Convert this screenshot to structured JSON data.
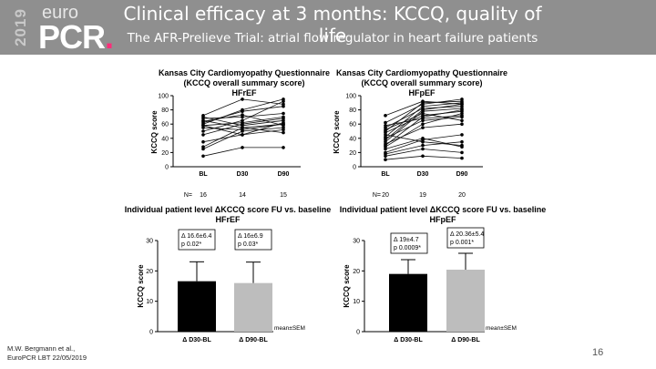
{
  "header": {
    "logo_year": "2019",
    "logo_euro": "euro",
    "logo_pcr": "PCR",
    "title": "Clinical efficacy at 3 months: KCCQ, quality of life",
    "subtitle": "The AFR-Prelieve Trial: atrial flow regulator in heart failure patients"
  },
  "footer": {
    "citation_line1": "M.W. Bergmann et al.,",
    "citation_line2": "EuroPCR LBT 22/05/2019",
    "page_number": "16"
  },
  "colors": {
    "header_bg": "#8f8f8f",
    "bar_dark": "#000000",
    "bar_light": "#bdbdbd"
  },
  "chart_data": [
    {
      "type": "line",
      "id": "hfref-line",
      "title_line1": "Kansas City Cardiomyopathy Questionnaire",
      "title_line2": "(KCCQ  overall summary score)",
      "subtitle": "HFrEF",
      "ylabel": "KCCQ score",
      "ylim": [
        0,
        100
      ],
      "yticks": [
        "0",
        "20",
        "40",
        "60",
        "80",
        "100"
      ],
      "categories": [
        "BL",
        "D30",
        "D90"
      ],
      "n_label": "N=",
      "n_values": [
        "16",
        "14",
        "15"
      ],
      "series": [
        [
          15,
          27,
          27
        ],
        [
          25,
          50,
          55
        ],
        [
          28,
          55,
          60
        ],
        [
          35,
          45,
          52
        ],
        [
          45,
          60,
          68
        ],
        [
          50,
          65,
          92
        ],
        [
          55,
          52,
          60
        ],
        [
          58,
          62,
          70
        ],
        [
          60,
          80,
          95
        ],
        [
          62,
          78,
          85
        ],
        [
          65,
          55,
          48
        ],
        [
          68,
          70,
          75
        ],
        [
          70,
          58,
          65
        ],
        [
          72,
          95,
          88
        ],
        [
          58,
          45,
          62
        ],
        [
          64,
          73,
          58
        ]
      ]
    },
    {
      "type": "line",
      "id": "hfpef-line",
      "title_line1": "Kansas City Cardiomyopathy Questionnaire",
      "title_line2": "(KCCQ  overall summary score)",
      "subtitle": "HFpEF",
      "ylabel": "KCCQ score",
      "ylim": [
        0,
        100
      ],
      "yticks": [
        "0",
        "20",
        "40",
        "60",
        "80",
        "100"
      ],
      "categories": [
        "BL",
        "D30",
        "D90"
      ],
      "n_label": "N=",
      "n_values": [
        "20",
        "19",
        "20"
      ],
      "series": [
        [
          10,
          15,
          12
        ],
        [
          15,
          25,
          20
        ],
        [
          18,
          30,
          35
        ],
        [
          20,
          38,
          45
        ],
        [
          25,
          40,
          28
        ],
        [
          28,
          60,
          75
        ],
        [
          30,
          70,
          80
        ],
        [
          32,
          55,
          60
        ],
        [
          35,
          78,
          82
        ],
        [
          38,
          80,
          88
        ],
        [
          40,
          65,
          70
        ],
        [
          42,
          85,
          90
        ],
        [
          45,
          35,
          30
        ],
        [
          48,
          72,
          78
        ],
        [
          50,
          90,
          92
        ],
        [
          52,
          75,
          65
        ],
        [
          55,
          82,
          85
        ],
        [
          58,
          68,
          72
        ],
        [
          62,
          88,
          95
        ],
        [
          72,
          92,
          88
        ]
      ]
    },
    {
      "type": "bar",
      "id": "hfref-bar",
      "title_line1": "Individual patient level ΔKCCQ score FU vs. baseline",
      "subtitle": "HFrEF",
      "ylabel": "KCCQ score",
      "ylim": [
        0,
        30
      ],
      "yticks": [
        "0",
        "10",
        "20",
        "30"
      ],
      "categories": [
        "Δ D30-BL",
        "Δ D90-BL"
      ],
      "values": [
        16.6,
        16.0
      ],
      "errors": [
        6.4,
        6.9
      ],
      "annotations": [
        {
          "delta": "Δ 16.6±6.4",
          "p": "p 0.02*"
        },
        {
          "delta": "Δ 16±6.9",
          "p": "p 0.03*"
        }
      ],
      "note": "mean±SEM"
    },
    {
      "type": "bar",
      "id": "hfpef-bar",
      "title_line1": "Individual patient level ΔKCCQ score FU vs. baseline",
      "subtitle": "HFpEF",
      "ylabel": "KCCQ score",
      "ylim": [
        0,
        30
      ],
      "yticks": [
        "0",
        "10",
        "20",
        "30"
      ],
      "categories": [
        "Δ D30-BL",
        "Δ D90-BL"
      ],
      "values": [
        19.0,
        20.4
      ],
      "errors": [
        4.7,
        5.4
      ],
      "annotations": [
        {
          "delta": "Δ 19±4.7",
          "p": "p 0.0009*"
        },
        {
          "delta": "Δ 20.36±5.4",
          "p": "p 0.001*"
        }
      ],
      "note": "mean±SEM"
    }
  ]
}
